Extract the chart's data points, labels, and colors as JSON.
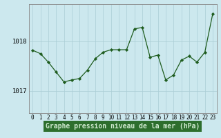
{
  "hours": [
    0,
    1,
    2,
    3,
    4,
    5,
    6,
    7,
    8,
    9,
    10,
    11,
    12,
    13,
    14,
    15,
    16,
    17,
    18,
    19,
    20,
    21,
    22,
    23
  ],
  "pressure": [
    1017.82,
    1017.75,
    1017.58,
    1017.38,
    1017.18,
    1017.22,
    1017.25,
    1017.42,
    1017.65,
    1017.78,
    1017.83,
    1017.83,
    1017.83,
    1018.25,
    1018.28,
    1017.68,
    1017.72,
    1017.22,
    1017.32,
    1017.62,
    1017.7,
    1017.58,
    1017.78,
    1018.55
  ],
  "yticks": [
    1017,
    1018
  ],
  "ylim": [
    1016.55,
    1018.75
  ],
  "xlim": [
    -0.5,
    23.5
  ],
  "bg_color": "#cce8ee",
  "grid_color": "#aacdd5",
  "line_color": "#1e5c1e",
  "marker_color": "#1e5c1e",
  "bottom_label": "Graphe pression niveau de la mer (hPa)",
  "label_bg": "#2d6e2d",
  "label_text_color": "#d0ead0",
  "axis_color": "#888888",
  "tick_fontsize": 5.5,
  "label_fontsize": 7.0,
  "fig_width": 3.2,
  "fig_height": 2.0,
  "dpi": 100
}
